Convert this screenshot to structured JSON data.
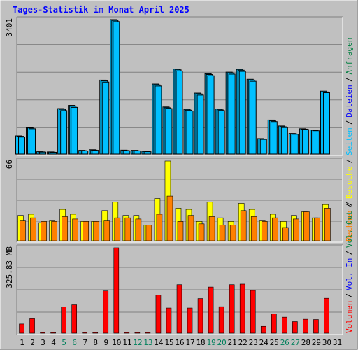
{
  "title": "Tages-Statistik im Monat April 2025",
  "colors": {
    "background": "#c0c0c0",
    "title": "#0000ff",
    "hits": "#00c0ff",
    "files": "#00c0ff",
    "pages": "#00c0ff",
    "visits": "#ffff00",
    "sites": "#ff8000",
    "volume": "#ff0000",
    "day_weekday": "#000000",
    "day_weekend": "#00805c",
    "legend_hits": "#008040",
    "legend_files": "#0000ff",
    "legend_pages": "#00c0ff",
    "legend_visits": "#ffff00",
    "legend_sites": "#ff8000",
    "legend_volin": "#0000ff",
    "legend_volout": "#008040",
    "legend_volume": "#ff0000",
    "legend_sep": "#000000"
  },
  "legend": {
    "top": {
      "hits": "Anfragen",
      "files": "Dateien",
      "pages": "Seiten",
      "sep": "/"
    },
    "middle": {
      "visits": "Besuche",
      "sites": "Rechner",
      "sep": "/"
    },
    "bottom": {
      "volume": "Volumen",
      "volin": "Vol. In",
      "volout": "Vol. Out",
      "sep": "/"
    }
  },
  "chart_data": [
    {
      "type": "bar",
      "panel": "top",
      "ymax_label": "3401",
      "ylim": [
        0,
        3401
      ],
      "grid": true,
      "categories": [
        "1",
        "2",
        "3",
        "4",
        "5",
        "6",
        "7",
        "8",
        "9",
        "10",
        "11",
        "12",
        "13",
        "14",
        "15",
        "16",
        "17",
        "18",
        "19",
        "20",
        "21",
        "22",
        "23",
        "24",
        "25",
        "26",
        "27",
        "28",
        "29",
        "30",
        "31"
      ],
      "series": [
        {
          "name": "Anfragen",
          "values": [
            460,
            670,
            60,
            55,
            1150,
            1230,
            95,
            110,
            1870,
            3401,
            100,
            95,
            70,
            1770,
            1190,
            2150,
            1130,
            1540,
            2030,
            1140,
            2070,
            2140,
            1890,
            390,
            860,
            710,
            520,
            640,
            610,
            1590,
            0
          ]
        },
        {
          "name": "Dateien",
          "values": [
            450,
            660,
            55,
            50,
            1130,
            1210,
            85,
            100,
            1850,
            3380,
            90,
            85,
            65,
            1750,
            1170,
            2130,
            1110,
            1520,
            2010,
            1120,
            2050,
            2120,
            1870,
            380,
            840,
            690,
            510,
            630,
            600,
            1570,
            0
          ]
        },
        {
          "name": "Seiten",
          "values": [
            430,
            640,
            50,
            45,
            1100,
            1180,
            80,
            95,
            1820,
            3350,
            85,
            80,
            60,
            1720,
            1150,
            2100,
            1090,
            1490,
            1980,
            1100,
            2020,
            2090,
            1840,
            370,
            820,
            670,
            500,
            620,
            590,
            1550,
            0
          ]
        }
      ]
    },
    {
      "type": "bar",
      "panel": "middle",
      "ymax_label": "66",
      "ylim": [
        0,
        66
      ],
      "grid": true,
      "categories": [
        "1",
        "2",
        "3",
        "4",
        "5",
        "6",
        "7",
        "8",
        "9",
        "10",
        "11",
        "12",
        "13",
        "14",
        "15",
        "16",
        "17",
        "18",
        "19",
        "20",
        "21",
        "22",
        "23",
        "24",
        "25",
        "26",
        "27",
        "28",
        "29",
        "30",
        "31"
      ],
      "series": [
        {
          "name": "Besuche",
          "values": [
            21,
            22,
            15,
            17,
            26,
            22,
            16,
            16,
            25,
            32,
            21,
            21,
            13,
            35,
            66,
            27,
            26,
            16,
            32,
            19,
            16,
            31,
            26,
            17,
            22,
            16,
            21,
            24,
            19,
            30,
            0
          ]
        },
        {
          "name": "Rechner",
          "values": [
            17,
            19,
            16,
            16,
            20,
            18,
            16,
            16,
            17,
            19,
            19,
            18,
            13,
            22,
            37,
            16,
            21,
            14,
            20,
            13,
            13,
            25,
            20,
            16,
            19,
            11,
            18,
            24,
            19,
            27,
            0
          ]
        }
      ]
    },
    {
      "type": "bar",
      "panel": "bottom",
      "ymax_label": "325.83 MB",
      "ylim": [
        0,
        325.83
      ],
      "grid": true,
      "categories": [
        "1",
        "2",
        "3",
        "4",
        "5",
        "6",
        "7",
        "8",
        "9",
        "10",
        "11",
        "12",
        "13",
        "14",
        "15",
        "16",
        "17",
        "18",
        "19",
        "20",
        "21",
        "22",
        "23",
        "24",
        "25",
        "26",
        "27",
        "28",
        "29",
        "30",
        "31"
      ],
      "series": [
        {
          "name": "Volumen",
          "values": [
            35,
            55,
            0,
            0,
            100,
            108,
            0,
            0,
            161,
            325.83,
            0,
            0,
            0,
            145,
            96,
            185,
            96,
            132,
            176,
            101,
            185,
            187,
            163,
            26,
            74,
            61,
            44,
            53,
            52,
            133,
            0
          ]
        }
      ]
    }
  ]
}
